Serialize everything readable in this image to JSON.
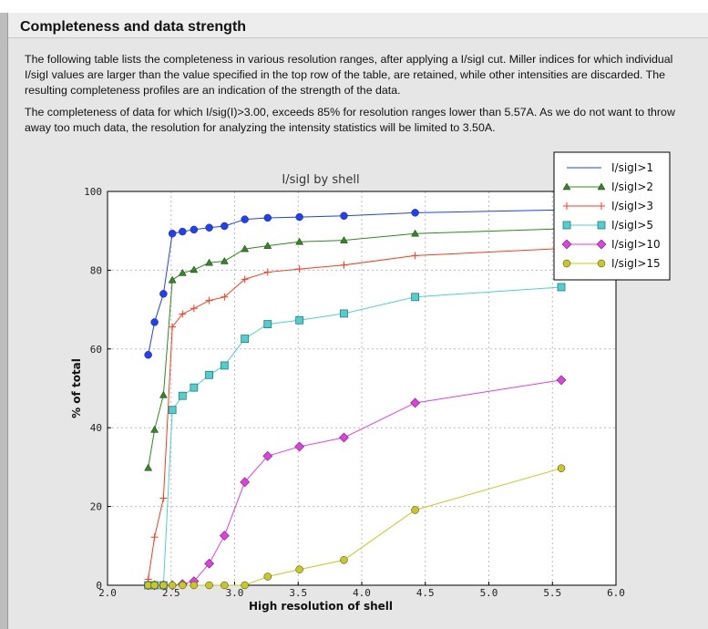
{
  "section": {
    "title": "Completeness and data strength",
    "paragraph1": "The following table lists the completeness in various resolution ranges, after applying a I/sigI cut. Miller indices for which individual I/sigI values are larger than the value specified in the top row of the table, are retained, while other intensities are discarded. The resulting completeness profiles are an indication of the strength of the data.",
    "paragraph2": "The completeness of data for which I/sig(I)>3.00, exceeds  85% for resolution ranges lower than 5.57A. As we do not want to throw away too much data, the resolution for analyzing the intensity statistics will be limited to 3.50A."
  },
  "chart_data": {
    "type": "line",
    "title": "I/sigI by shell",
    "xlabel": "High resolution of shell",
    "ylabel": "% of total",
    "xlim": [
      2.0,
      6.0
    ],
    "ylim": [
      0,
      100
    ],
    "xticks": [
      "2.0",
      "2.5",
      "3.0",
      "3.5",
      "4.0",
      "4.5",
      "5.0",
      "5.5",
      "6.0"
    ],
    "yticks": [
      "0",
      "20",
      "40",
      "60",
      "80",
      "100"
    ],
    "grid": true,
    "legend_position": "top-right",
    "x": [
      2.32,
      2.37,
      2.44,
      2.51,
      2.59,
      2.68,
      2.8,
      2.92,
      3.08,
      3.26,
      3.51,
      3.86,
      4.42,
      5.57
    ],
    "series": [
      {
        "name": "I/sigI>1",
        "color": "#1f3fff",
        "marker": "circle",
        "values": [
          58.5,
          66.8,
          74.0,
          89.3,
          89.8,
          90.3,
          90.8,
          91.2,
          92.9,
          93.3,
          93.5,
          93.8,
          94.6,
          95.3
        ]
      },
      {
        "name": "I/sigI>2",
        "color": "#2e8b1e",
        "marker": "triangle",
        "values": [
          29.8,
          39.5,
          48.3,
          77.5,
          79.3,
          80.1,
          81.9,
          82.3,
          85.4,
          86.2,
          87.2,
          87.6,
          89.3,
          90.5
        ]
      },
      {
        "name": "I/sigI>3",
        "color": "#ff3a1f",
        "marker": "plus",
        "values": [
          1.5,
          12.2,
          22.1,
          65.6,
          68.9,
          70.3,
          72.3,
          73.2,
          77.7,
          79.5,
          80.3,
          81.3,
          83.7,
          85.5
        ]
      },
      {
        "name": "I/sigI>5",
        "color": "#4fd0d0",
        "marker": "square",
        "values": [
          0,
          0,
          0,
          44.5,
          48.1,
          50.2,
          53.4,
          55.8,
          62.6,
          66.3,
          67.3,
          69.0,
          73.2,
          75.7
        ]
      },
      {
        "name": "I/sigI>10",
        "color": "#e040e0",
        "marker": "diamond",
        "values": [
          0,
          0,
          0,
          0,
          0.3,
          1.0,
          5.5,
          12.6,
          26.2,
          32.8,
          35.2,
          37.5,
          46.3,
          52.1
        ]
      },
      {
        "name": "I/sigI>15",
        "color": "#c8c81e",
        "marker": "circle",
        "values": [
          0,
          0,
          0,
          0,
          0,
          0,
          0,
          0,
          0,
          2.2,
          4.0,
          6.4,
          19.1,
          29.7
        ]
      }
    ]
  }
}
